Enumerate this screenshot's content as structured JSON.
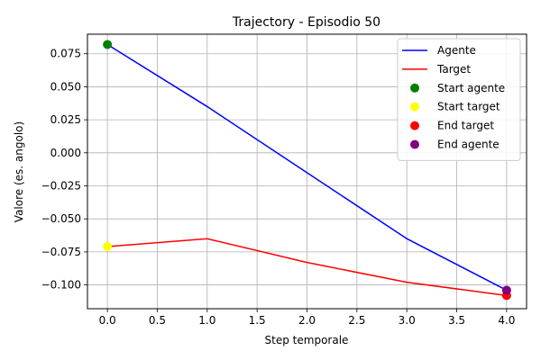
{
  "chart_data": {
    "type": "line",
    "title": "Trajectory - Episodio 50",
    "xlabel": "Step temporale",
    "ylabel": "Valore (es. angolo)",
    "xlim": [
      -0.2,
      4.2
    ],
    "ylim": [
      -0.118,
      0.0898
    ],
    "xticks": [
      0.0,
      0.5,
      1.0,
      1.5,
      2.0,
      2.5,
      3.0,
      3.5,
      4.0
    ],
    "xtick_labels": [
      "0.0",
      "0.5",
      "1.0",
      "1.5",
      "2.0",
      "2.5",
      "3.0",
      "3.5",
      "4.0"
    ],
    "yticks": [
      0.075,
      0.05,
      0.025,
      0.0,
      -0.025,
      -0.05,
      -0.075,
      -0.1
    ],
    "ytick_labels": [
      "0.075",
      "0.050",
      "0.025",
      "0.000",
      "−0.025",
      "−0.050",
      "−0.075",
      "−0.100"
    ],
    "grid": true,
    "legend_position": "top-right",
    "x": [
      0,
      1,
      2,
      3,
      4
    ],
    "series": [
      {
        "name": "Agente",
        "color": "#0000ff",
        "values": [
          0.082,
          0.035,
          -0.015,
          -0.065,
          -0.104
        ]
      },
      {
        "name": "Target",
        "color": "#ff0000",
        "values": [
          -0.071,
          -0.065,
          -0.083,
          -0.098,
          -0.108
        ]
      }
    ],
    "markers": [
      {
        "name": "Start agente",
        "color": "#008000",
        "x": 0,
        "y": 0.082
      },
      {
        "name": "Start target",
        "color": "#ffff00",
        "x": 0,
        "y": -0.071
      },
      {
        "name": "End target",
        "color": "#ff0000",
        "x": 4,
        "y": -0.108
      },
      {
        "name": "End agente",
        "color": "#800080",
        "x": 4,
        "y": -0.104
      }
    ]
  }
}
